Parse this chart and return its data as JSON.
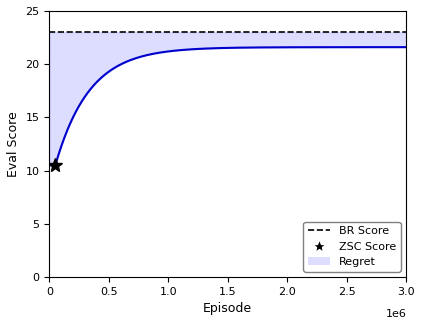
{
  "br_score": 23.0,
  "zsc_x": 50000,
  "zsc_y": 10.5,
  "curve_start_x": 50000,
  "curve_start_y": 10.5,
  "curve_end_y": 21.6,
  "x_max": 3000000,
  "y_max": 25,
  "y_min": 0,
  "x_label": "Episode",
  "y_label": "Eval Score",
  "legend_labels": [
    "BR Score",
    "ZSC Score",
    "Regret"
  ],
  "line_color": "#0000cc",
  "fill_color": "#aaaaff",
  "fill_alpha": 0.4,
  "br_line_color": "#000000",
  "zsc_marker_color": "#000000",
  "x_ticks": [
    0,
    500000,
    1000000,
    1500000,
    2000000,
    2500000,
    3000000
  ],
  "x_tick_labels": [
    "0",
    "0.5",
    "1.0",
    "1.5",
    "2.0",
    "2.5",
    "3.0"
  ],
  "y_ticks": [
    0,
    5,
    10,
    15,
    20,
    25
  ],
  "figsize": [
    4.22,
    3.24
  ],
  "dpi": 100
}
